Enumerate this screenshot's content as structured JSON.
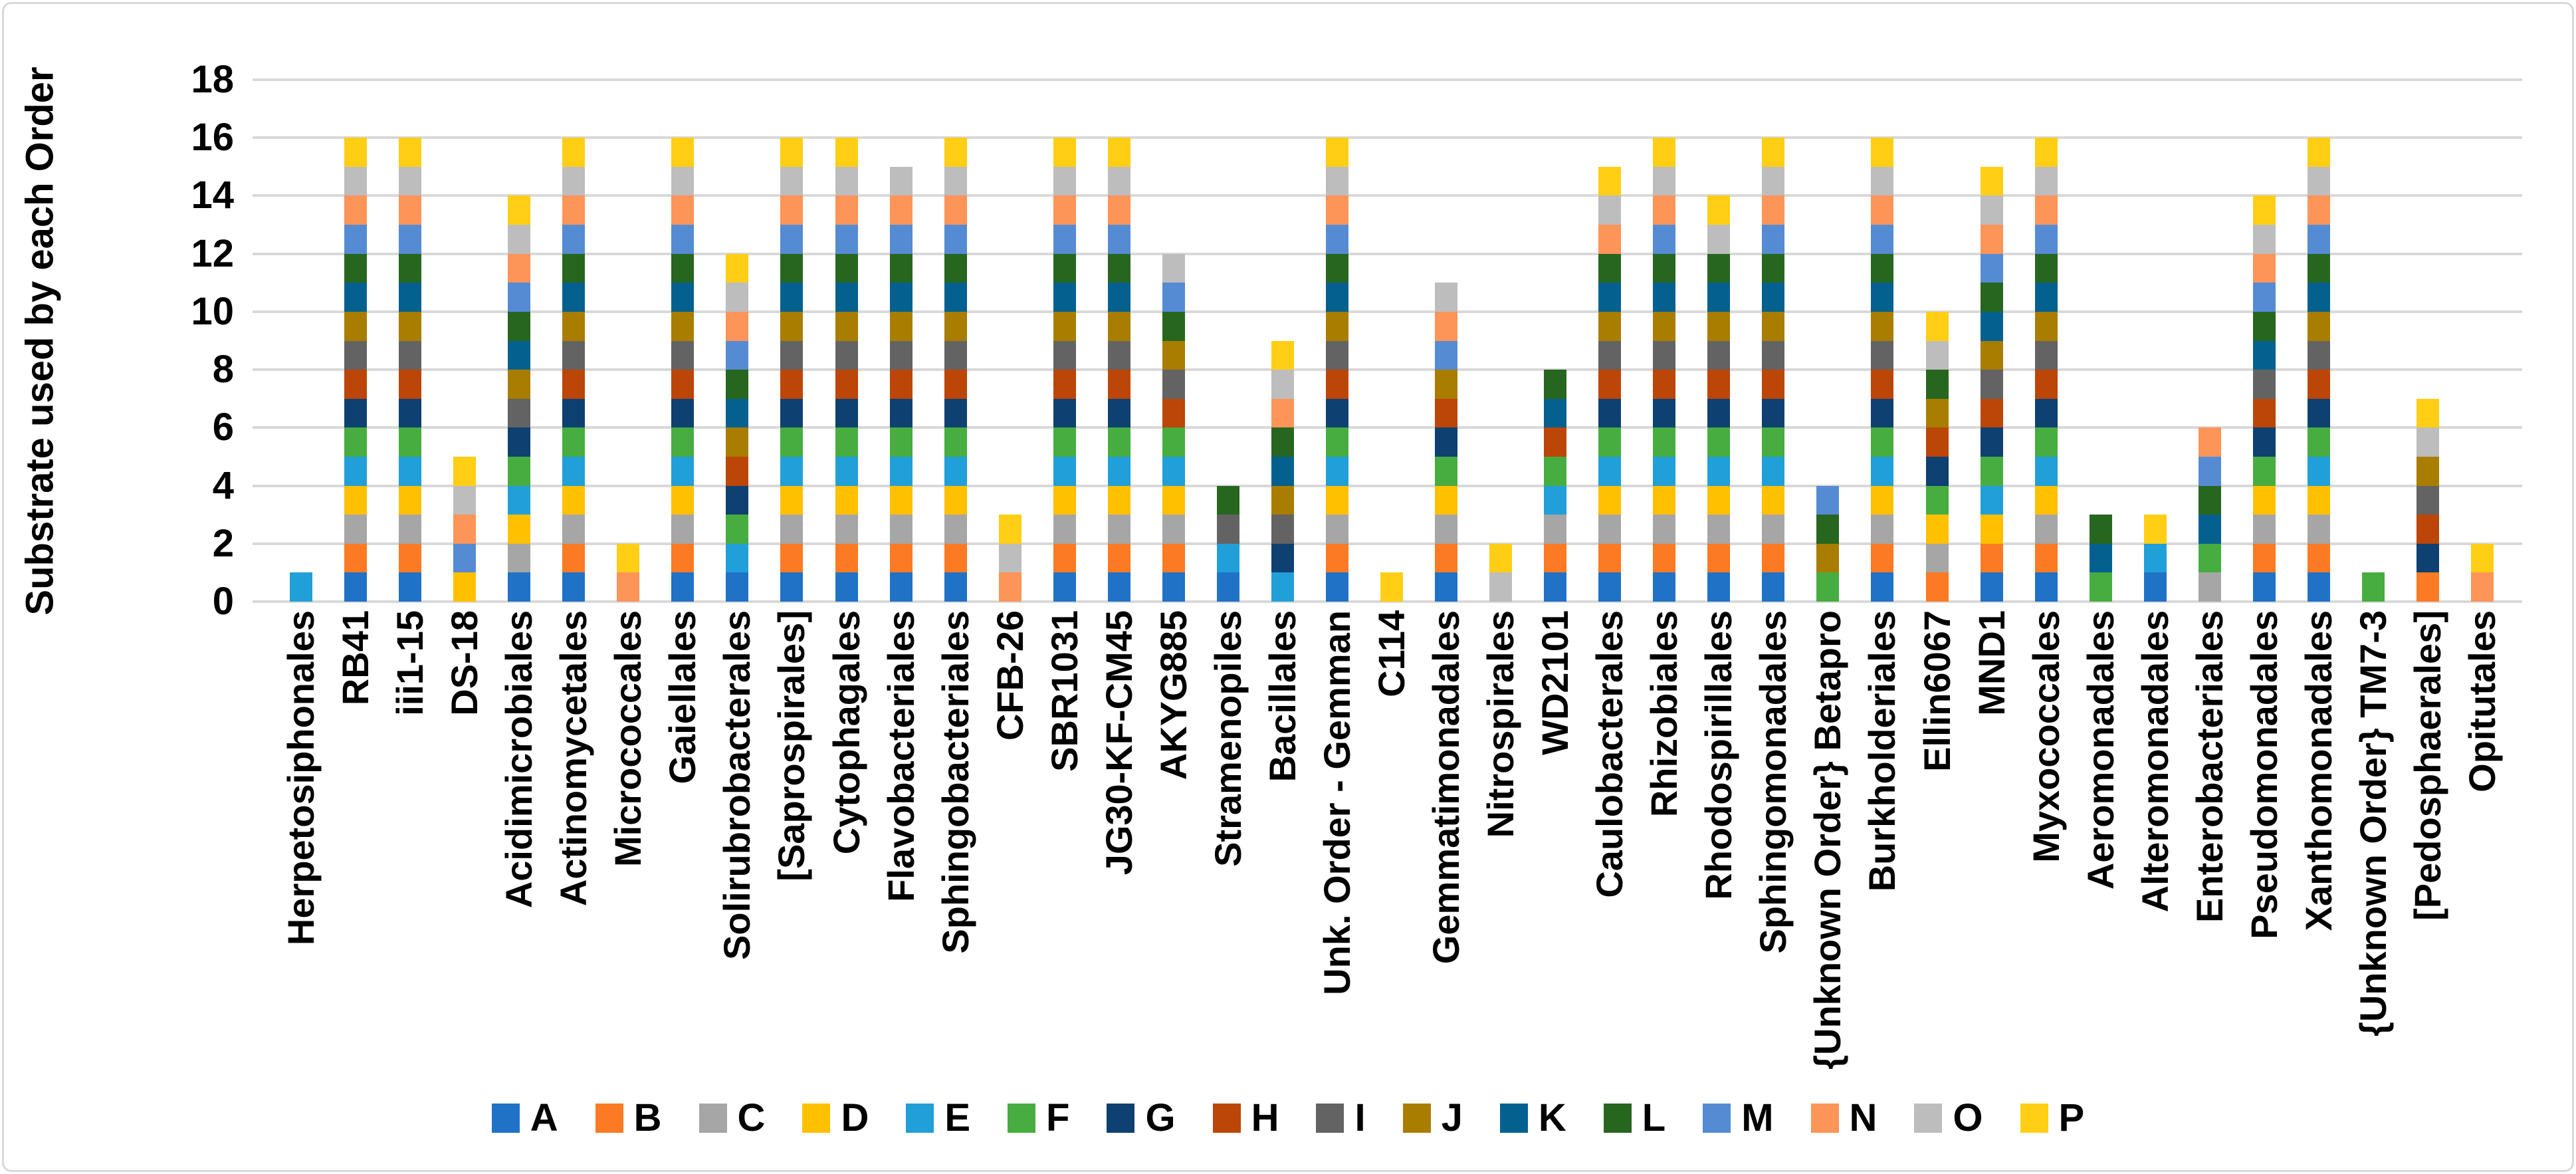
{
  "frame": {
    "background": "#FFFFFF",
    "border_color": "#D9D9D9"
  },
  "chart_data": {
    "type": "bar",
    "stacked": true,
    "title": "",
    "xlabel": "",
    "ylabel": "Substrate used by each Order",
    "ylim": [
      0,
      18
    ],
    "yticks": [
      0,
      2,
      4,
      6,
      8,
      10,
      12,
      14,
      16,
      18
    ],
    "grid": true,
    "gridline_color": "#D9D9D9",
    "legend_position": "bottom",
    "value_per_substrate": 1,
    "series": [
      {
        "name": "A",
        "color": "#1F72C6"
      },
      {
        "name": "B",
        "color": "#FB7A23"
      },
      {
        "name": "C",
        "color": "#A6A6A6"
      },
      {
        "name": "D",
        "color": "#FFC000"
      },
      {
        "name": "E",
        "color": "#219FD9"
      },
      {
        "name": "F",
        "color": "#47AD40"
      },
      {
        "name": "G",
        "color": "#0E4072"
      },
      {
        "name": "H",
        "color": "#BC4508"
      },
      {
        "name": "I",
        "color": "#636363"
      },
      {
        "name": "J",
        "color": "#A87D00"
      },
      {
        "name": "K",
        "color": "#04618F"
      },
      {
        "name": "L",
        "color": "#27661F"
      },
      {
        "name": "M",
        "color": "#558BD3"
      },
      {
        "name": "N",
        "color": "#FD9458"
      },
      {
        "name": "O",
        "color": "#BDBDBD"
      },
      {
        "name": "P",
        "color": "#FFCE15"
      }
    ],
    "categories": [
      {
        "label": "Herpetosiphonales",
        "substrates": [
          "E"
        ],
        "total": 1
      },
      {
        "label": "RB41",
        "substrates": [
          "A",
          "B",
          "C",
          "D",
          "E",
          "F",
          "G",
          "H",
          "I",
          "J",
          "K",
          "L",
          "M",
          "N",
          "O",
          "P"
        ],
        "total": 16
      },
      {
        "label": "iii1-15",
        "substrates": [
          "A",
          "B",
          "C",
          "D",
          "E",
          "F",
          "G",
          "H",
          "I",
          "J",
          "K",
          "L",
          "M",
          "N",
          "O",
          "P"
        ],
        "total": 16
      },
      {
        "label": "DS-18",
        "substrates": [
          "D",
          "M",
          "N",
          "O",
          "P"
        ],
        "total": 5
      },
      {
        "label": "Acidimicrobiales",
        "substrates": [
          "A",
          "C",
          "D",
          "E",
          "F",
          "G",
          "I",
          "J",
          "K",
          "L",
          "M",
          "N",
          "O",
          "P"
        ],
        "total": 14
      },
      {
        "label": "Actinomycetales",
        "substrates": [
          "A",
          "B",
          "C",
          "D",
          "E",
          "F",
          "G",
          "H",
          "I",
          "J",
          "K",
          "L",
          "M",
          "N",
          "O",
          "P"
        ],
        "total": 16
      },
      {
        "label": "Micrococcales",
        "substrates": [
          "N",
          "P"
        ],
        "total": 2
      },
      {
        "label": "Gaiellales",
        "substrates": [
          "A",
          "B",
          "C",
          "D",
          "E",
          "F",
          "G",
          "H",
          "I",
          "J",
          "K",
          "L",
          "M",
          "N",
          "O",
          "P"
        ],
        "total": 16
      },
      {
        "label": "Solirubrobacterales",
        "substrates": [
          "A",
          "E",
          "F",
          "G",
          "H",
          "J",
          "K",
          "L",
          "M",
          "N",
          "O",
          "P"
        ],
        "total": 12
      },
      {
        "label": "[Saprospirales]",
        "substrates": [
          "A",
          "B",
          "C",
          "D",
          "E",
          "F",
          "G",
          "H",
          "I",
          "J",
          "K",
          "L",
          "M",
          "N",
          "O",
          "P"
        ],
        "total": 16
      },
      {
        "label": "Cytophagales",
        "substrates": [
          "A",
          "B",
          "C",
          "D",
          "E",
          "F",
          "G",
          "H",
          "I",
          "J",
          "K",
          "L",
          "M",
          "N",
          "O",
          "P"
        ],
        "total": 16
      },
      {
        "label": "Flavobacteriales",
        "substrates": [
          "A",
          "B",
          "C",
          "D",
          "E",
          "F",
          "G",
          "H",
          "I",
          "J",
          "K",
          "L",
          "M",
          "N",
          "O"
        ],
        "total": 15
      },
      {
        "label": "Sphingobacteriales",
        "substrates": [
          "A",
          "B",
          "C",
          "D",
          "E",
          "F",
          "G",
          "H",
          "I",
          "J",
          "K",
          "L",
          "M",
          "N",
          "O",
          "P"
        ],
        "total": 16
      },
      {
        "label": "CFB-26",
        "substrates": [
          "N",
          "O",
          "P"
        ],
        "total": 3
      },
      {
        "label": "SBR1031",
        "substrates": [
          "A",
          "B",
          "C",
          "D",
          "E",
          "F",
          "G",
          "H",
          "I",
          "J",
          "K",
          "L",
          "M",
          "N",
          "O",
          "P"
        ],
        "total": 16
      },
      {
        "label": "JG30-KF-CM45",
        "substrates": [
          "A",
          "B",
          "C",
          "D",
          "E",
          "F",
          "G",
          "H",
          "I",
          "J",
          "K",
          "L",
          "M",
          "N",
          "O",
          "P"
        ],
        "total": 16
      },
      {
        "label": "AKYG885",
        "substrates": [
          "A",
          "B",
          "C",
          "D",
          "E",
          "F",
          "H",
          "I",
          "J",
          "L",
          "M",
          "O"
        ],
        "total": 12
      },
      {
        "label": "Stramenopiles",
        "substrates": [
          "A",
          "E",
          "I",
          "L"
        ],
        "total": 4
      },
      {
        "label": "Bacillales",
        "substrates": [
          "E",
          "G",
          "I",
          "J",
          "K",
          "L",
          "N",
          "O",
          "P"
        ],
        "total": 9
      },
      {
        "label": "Unk. Order - Gemman",
        "substrates": [
          "A",
          "B",
          "C",
          "D",
          "E",
          "F",
          "G",
          "H",
          "I",
          "J",
          "K",
          "L",
          "M",
          "N",
          "O",
          "P"
        ],
        "total": 16
      },
      {
        "label": "C114",
        "substrates": [
          "P"
        ],
        "total": 1
      },
      {
        "label": "Gemmatimonadales",
        "substrates": [
          "A",
          "B",
          "C",
          "D",
          "F",
          "G",
          "H",
          "J",
          "M",
          "N",
          "O"
        ],
        "total": 11
      },
      {
        "label": "Nitrospirales",
        "substrates": [
          "O",
          "P"
        ],
        "total": 2
      },
      {
        "label": "WD2101",
        "substrates": [
          "A",
          "B",
          "C",
          "E",
          "F",
          "H",
          "K",
          "L"
        ],
        "total": 8
      },
      {
        "label": "Caulobacterales",
        "substrates": [
          "A",
          "B",
          "C",
          "D",
          "E",
          "F",
          "G",
          "H",
          "I",
          "J",
          "K",
          "L",
          "N",
          "O",
          "P"
        ],
        "total": 15
      },
      {
        "label": "Rhizobiales",
        "substrates": [
          "A",
          "B",
          "C",
          "D",
          "E",
          "F",
          "G",
          "H",
          "I",
          "J",
          "K",
          "L",
          "M",
          "N",
          "O",
          "P"
        ],
        "total": 16
      },
      {
        "label": "Rhodospirillales",
        "substrates": [
          "A",
          "B",
          "C",
          "D",
          "E",
          "F",
          "G",
          "H",
          "I",
          "J",
          "K",
          "L",
          "O",
          "P"
        ],
        "total": 14
      },
      {
        "label": "Sphingomonadales",
        "substrates": [
          "A",
          "B",
          "C",
          "D",
          "E",
          "F",
          "G",
          "H",
          "I",
          "J",
          "K",
          "L",
          "M",
          "N",
          "O",
          "P"
        ],
        "total": 16
      },
      {
        "label": "{Unknown Order} Betapro",
        "substrates": [
          "F",
          "J",
          "L",
          "M"
        ],
        "total": 4
      },
      {
        "label": "Burkholderiales",
        "substrates": [
          "A",
          "B",
          "C",
          "D",
          "E",
          "F",
          "G",
          "H",
          "I",
          "J",
          "K",
          "L",
          "M",
          "N",
          "O",
          "P"
        ],
        "total": 16
      },
      {
        "label": "Ellin6067",
        "substrates": [
          "B",
          "C",
          "D",
          "F",
          "G",
          "H",
          "J",
          "L",
          "O",
          "P"
        ],
        "total": 10
      },
      {
        "label": "MND1",
        "substrates": [
          "A",
          "B",
          "D",
          "E",
          "F",
          "G",
          "H",
          "I",
          "J",
          "K",
          "L",
          "M",
          "N",
          "O",
          "P"
        ],
        "total": 15
      },
      {
        "label": "Myxococcales",
        "substrates": [
          "A",
          "B",
          "C",
          "D",
          "E",
          "F",
          "G",
          "H",
          "I",
          "J",
          "K",
          "L",
          "M",
          "N",
          "O",
          "P"
        ],
        "total": 16
      },
      {
        "label": "Aeromonadales",
        "substrates": [
          "F",
          "K",
          "L"
        ],
        "total": 3
      },
      {
        "label": "Alteromonadales",
        "substrates": [
          "A",
          "E",
          "P"
        ],
        "total": 3
      },
      {
        "label": "Enterobacteriales",
        "substrates": [
          "C",
          "F",
          "K",
          "L",
          "M",
          "N"
        ],
        "total": 6
      },
      {
        "label": "Pseudomonadales",
        "substrates": [
          "A",
          "B",
          "C",
          "D",
          "F",
          "G",
          "H",
          "I",
          "K",
          "L",
          "M",
          "N",
          "O",
          "P"
        ],
        "total": 14
      },
      {
        "label": "Xanthomonadales",
        "substrates": [
          "A",
          "B",
          "C",
          "D",
          "E",
          "F",
          "G",
          "H",
          "I",
          "J",
          "K",
          "L",
          "M",
          "N",
          "O",
          "P"
        ],
        "total": 16
      },
      {
        "label": "{Unknown Order} TM7-3",
        "substrates": [
          "F"
        ],
        "total": 1
      },
      {
        "label": "[Pedosphaerales]",
        "substrates": [
          "B",
          "G",
          "H",
          "I",
          "J",
          "O",
          "P"
        ],
        "total": 7
      },
      {
        "label": "Opitutales",
        "substrates": [
          "N",
          "P"
        ],
        "total": 2
      }
    ]
  }
}
